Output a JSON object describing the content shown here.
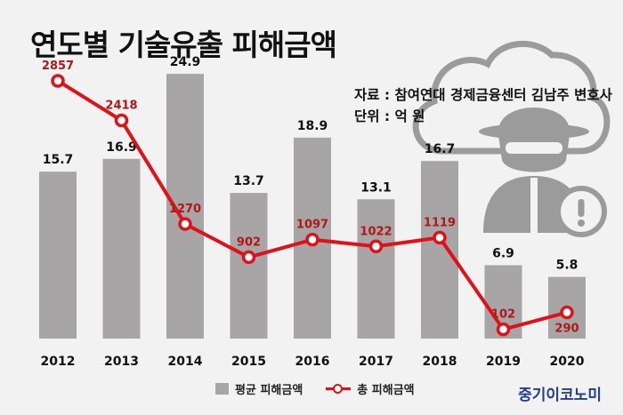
{
  "title": "연도별 기술유출 피해금액",
  "source": {
    "line1": "자료 : 참여연대 경제금융센터 김남주 변호사",
    "line2": "단위 : 억 원"
  },
  "brand": "중기이코노미",
  "colors": {
    "bar": "#a7a5a6",
    "line": "#e01219",
    "line_label": "#b01818",
    "bar_label": "#111111",
    "icon": "#9b9b9b"
  },
  "chart_data": {
    "type": "bar",
    "categories": [
      "2012",
      "2013",
      "2014",
      "2015",
      "2016",
      "2017",
      "2018",
      "2019",
      "2020"
    ],
    "series": [
      {
        "name": "평균 피해금액",
        "type": "bar",
        "values": [
          15.7,
          16.9,
          24.9,
          13.7,
          18.9,
          13.1,
          16.7,
          6.9,
          5.8
        ],
        "labels": [
          "15.7",
          "16.9",
          "24.9",
          "13.7",
          "18.9",
          "13.1",
          "16.7",
          "6.9",
          "5.8"
        ]
      },
      {
        "name": "총 피해금액",
        "type": "line",
        "values": [
          2857,
          2418,
          1270,
          902,
          1097,
          1022,
          1119,
          102,
          290
        ],
        "labels": [
          "2857",
          "2418",
          "1270",
          "902",
          "1097",
          "1022",
          "1119",
          "102",
          "290"
        ]
      }
    ],
    "bar_ylim": [
      0,
      28
    ],
    "line_ylim": [
      0,
      3300
    ],
    "grid": false,
    "legend": [
      "평균 피해금액",
      "총 피해금액"
    ],
    "legend_position": "bottom-center"
  }
}
